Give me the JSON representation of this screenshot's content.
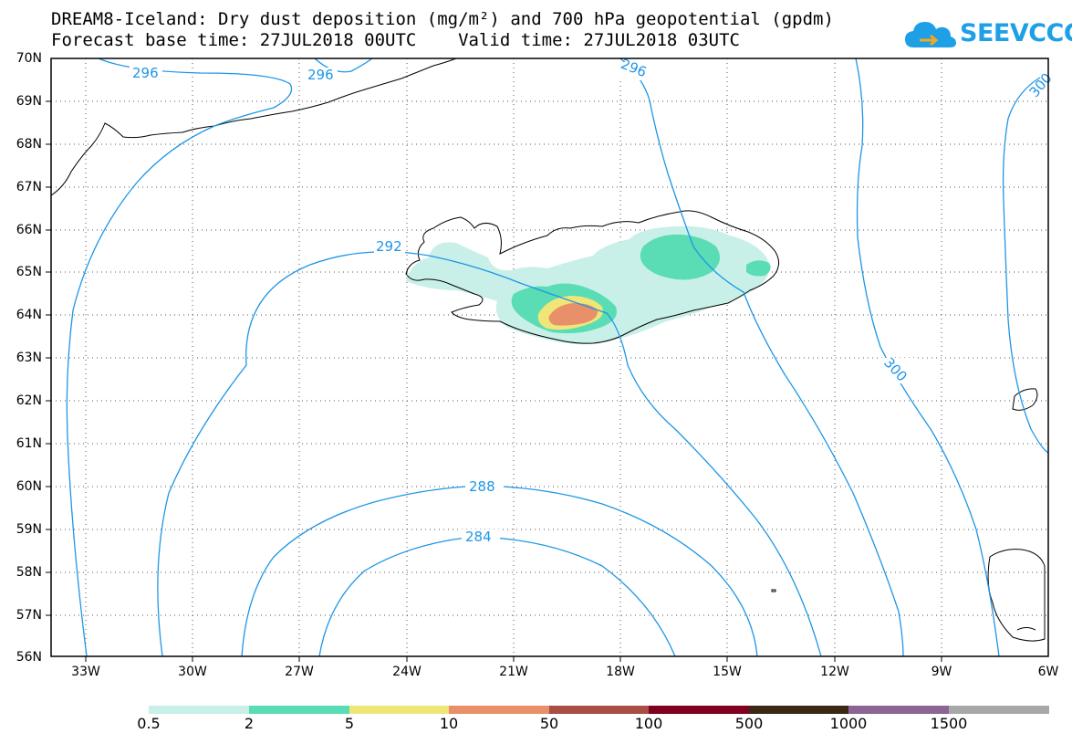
{
  "header": {
    "title_line1": "DREAM8-Iceland: Dry dust deposition (mg/m²) and 700 hPa geopotential (gpdm)",
    "title_line2": "Forecast base time: 27JUL2018 00UTC    Valid time: 27JUL2018 03UTC"
  },
  "logo": {
    "text": "SEEVCCC",
    "icon": "cloud-icon",
    "color": "#1ea0e6"
  },
  "map": {
    "lat_labels": [
      "70N",
      "69N",
      "68N",
      "67N",
      "66N",
      "65N",
      "64N",
      "63N",
      "62N",
      "61N",
      "60N",
      "59N",
      "58N",
      "57N",
      "56N"
    ],
    "lon_labels": [
      "33W",
      "30W",
      "27W",
      "24W",
      "21W",
      "18W",
      "15W",
      "12W",
      "9W",
      "6W"
    ],
    "contour_labels": [
      "296",
      "296",
      "296",
      "300",
      "300",
      "292",
      "288",
      "284"
    ],
    "contour_color": "#1e96e6"
  },
  "colorbar": {
    "labels": [
      "0.5",
      "2",
      "5",
      "10",
      "50",
      "100",
      "500",
      "1000",
      "1500"
    ],
    "colors": [
      "#c8f0e8",
      "#5adcb4",
      "#f0e678",
      "#e8906a",
      "#a84e44",
      "#800020",
      "#3c2814",
      "#8c6496",
      "#a8a8a8"
    ]
  }
}
